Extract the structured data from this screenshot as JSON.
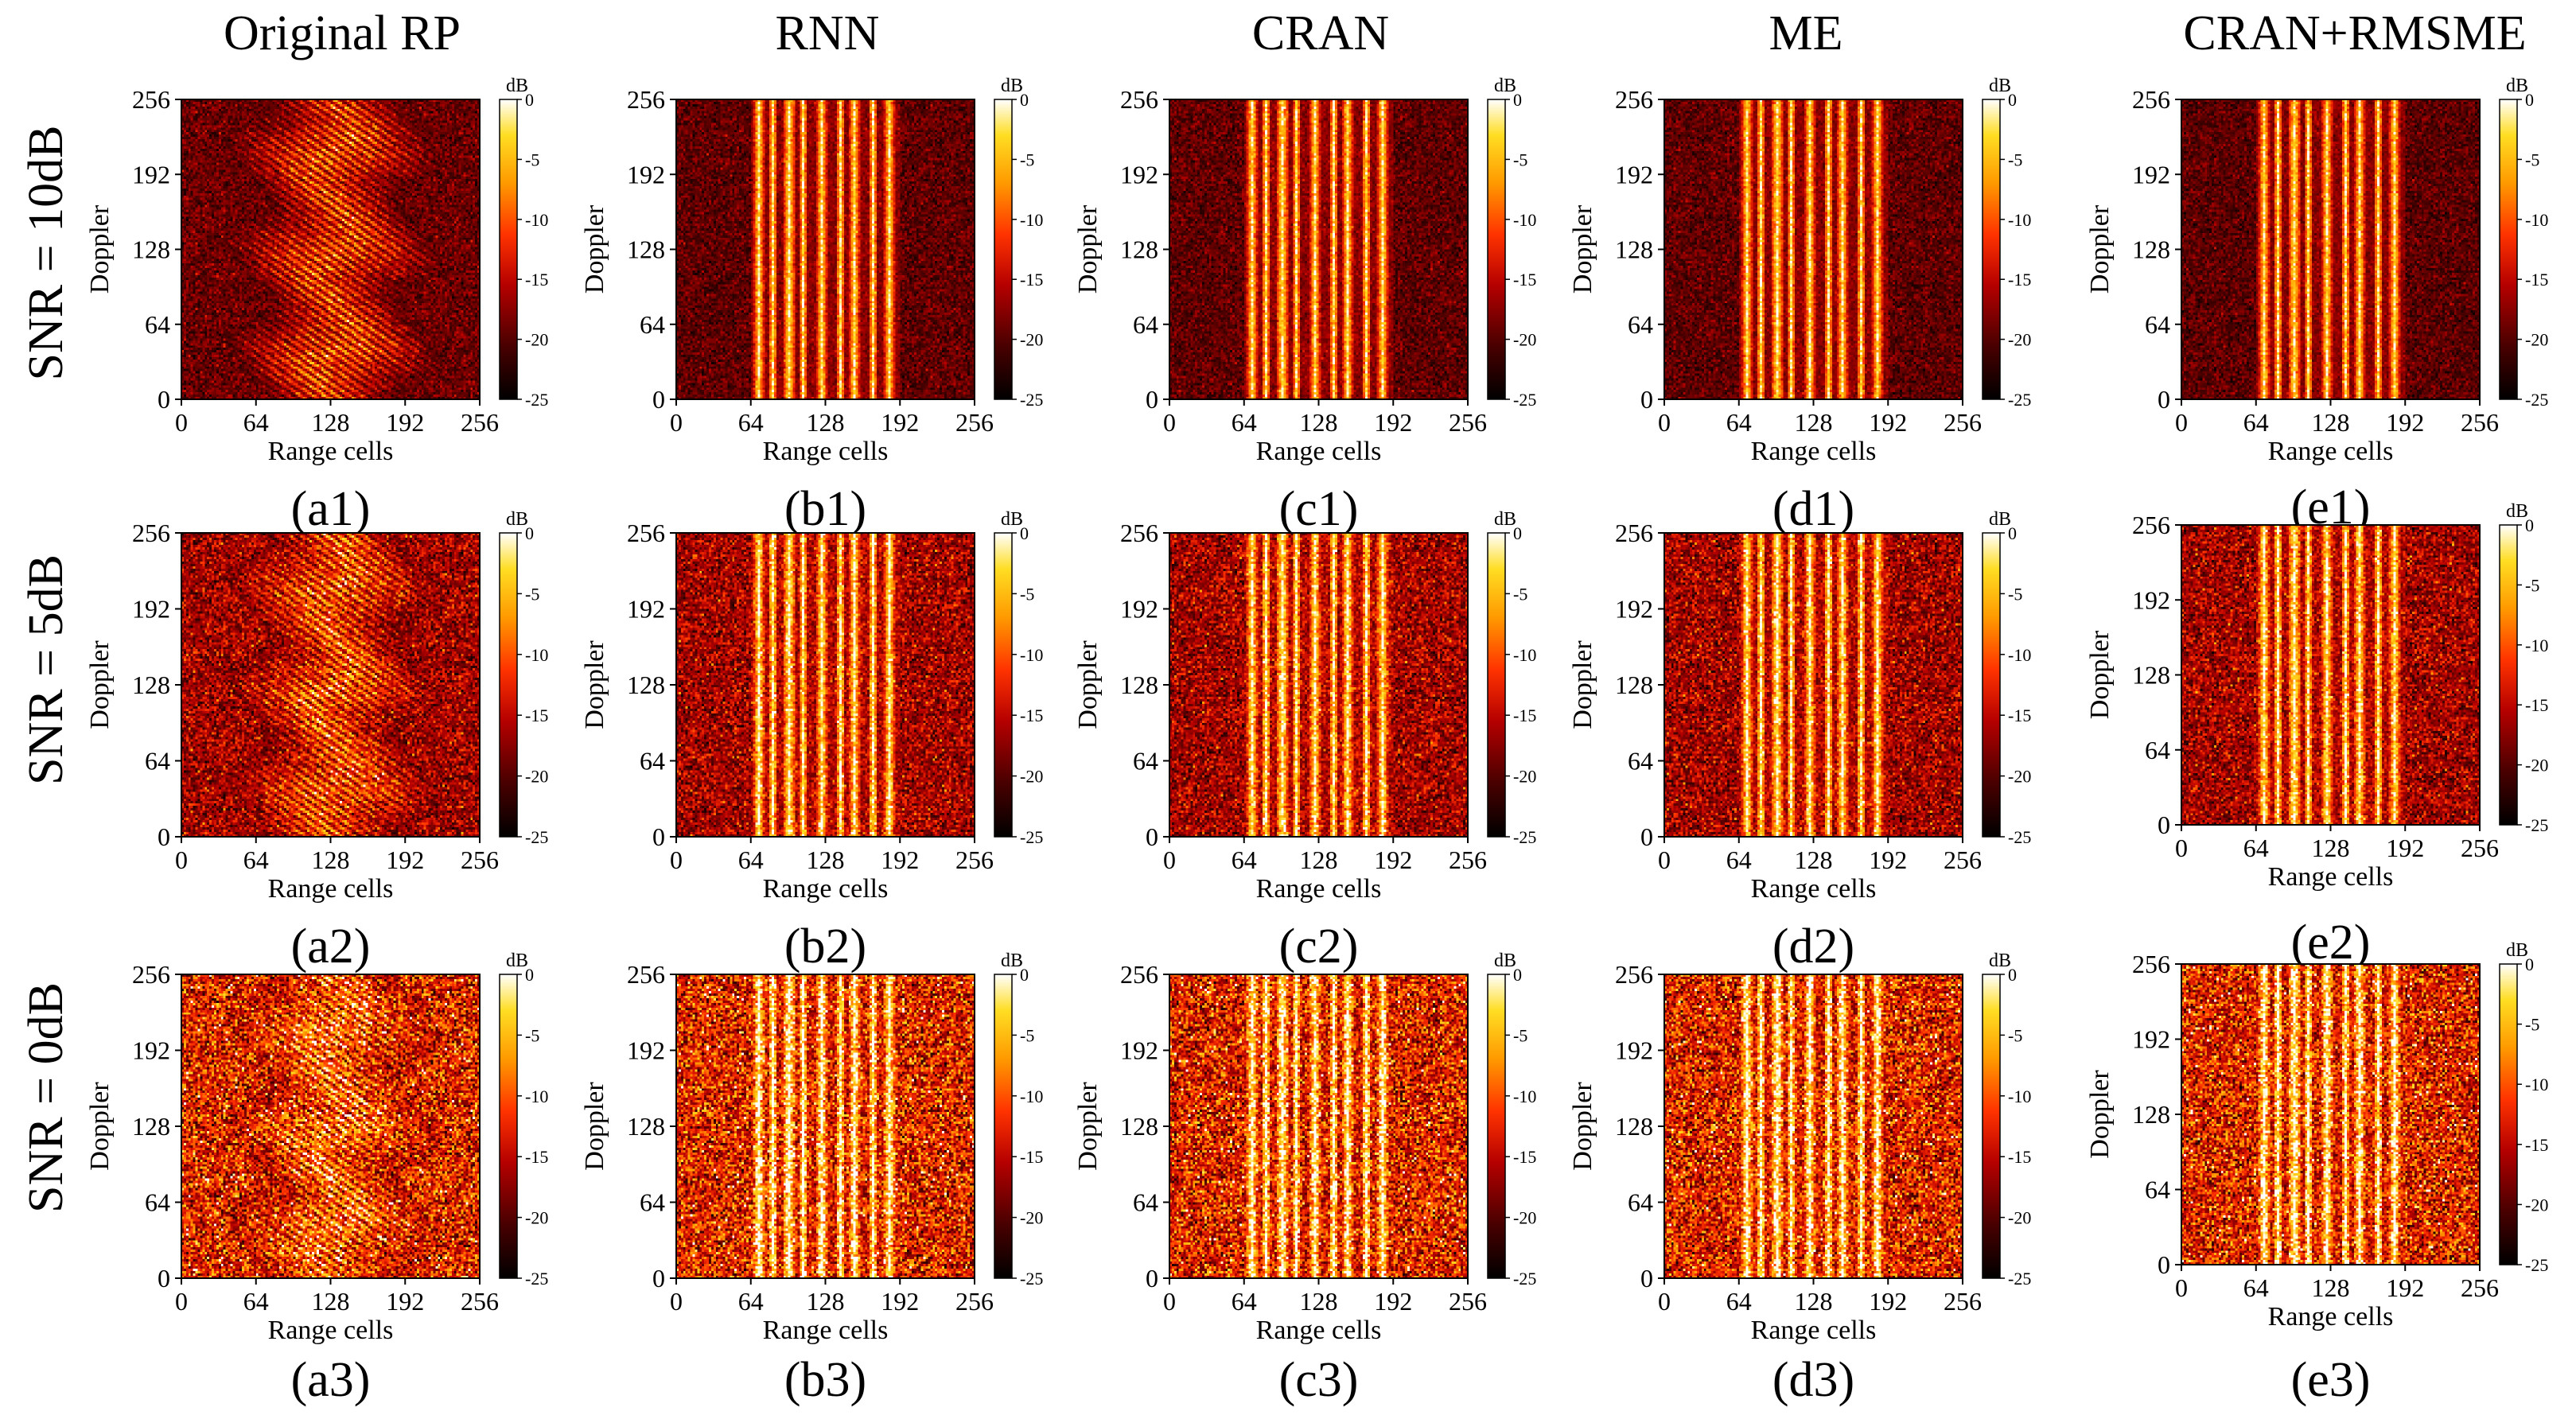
{
  "chart_data": {
    "type": "heatmap",
    "layout": "grid",
    "grid_rows": 3,
    "grid_cols": 5,
    "column_titles": [
      "Original RP",
      "RNN",
      "CRAN",
      "ME",
      "CRAN+RMSME"
    ],
    "row_labels": [
      "SNR = 10dB",
      "SNR = 5dB",
      "SNR = 0dB"
    ],
    "xlabel": "Range cells",
    "ylabel": "Doppler",
    "xticks": [
      "0",
      "64",
      "128",
      "192",
      "256"
    ],
    "yticks": [
      "0",
      "64",
      "128",
      "192",
      "256"
    ],
    "xlim": [
      0,
      256
    ],
    "ylim": [
      0,
      256
    ],
    "colorbar": {
      "label": "dB",
      "ticks": [
        "0",
        "-5",
        "-10",
        "-15",
        "-20",
        "-25"
      ],
      "range": [
        -25,
        0
      ],
      "colormap": "hot",
      "colors": [
        "#000000",
        "#4a0000",
        "#b50000",
        "#ff3300",
        "#ff9900",
        "#ffdd22",
        "#ffffff"
      ]
    },
    "panels": [
      {
        "label": "(a1)",
        "method": "Original RP",
        "snr_db": 10,
        "pattern": "spread",
        "noise_level": 0.18
      },
      {
        "label": "(b1)",
        "method": "RNN",
        "snr_db": 10,
        "pattern": "stripes",
        "noise_level": 0.15
      },
      {
        "label": "(c1)",
        "method": "CRAN",
        "snr_db": 10,
        "pattern": "stripes",
        "noise_level": 0.15
      },
      {
        "label": "(d1)",
        "method": "ME",
        "snr_db": 10,
        "pattern": "stripes",
        "noise_level": 0.15
      },
      {
        "label": "(e1)",
        "method": "CRAN+RMSME",
        "snr_db": 10,
        "pattern": "stripes",
        "noise_level": 0.14
      },
      {
        "label": "(a2)",
        "method": "Original RP",
        "snr_db": 5,
        "pattern": "spread",
        "noise_level": 0.32
      },
      {
        "label": "(b2)",
        "method": "RNN",
        "snr_db": 5,
        "pattern": "stripes",
        "noise_level": 0.32
      },
      {
        "label": "(c2)",
        "method": "CRAN",
        "snr_db": 5,
        "pattern": "stripes",
        "noise_level": 0.32
      },
      {
        "label": "(d2)",
        "method": "ME",
        "snr_db": 5,
        "pattern": "stripes",
        "noise_level": 0.32
      },
      {
        "label": "(e2)",
        "method": "CRAN+RMSME",
        "snr_db": 5,
        "pattern": "stripes",
        "noise_level": 0.32
      },
      {
        "label": "(a3)",
        "method": "Original RP",
        "snr_db": 0,
        "pattern": "spread",
        "noise_level": 0.5
      },
      {
        "label": "(b3)",
        "method": "RNN",
        "snr_db": 0,
        "pattern": "stripes",
        "noise_level": 0.5
      },
      {
        "label": "(c3)",
        "method": "CRAN",
        "snr_db": 0,
        "pattern": "stripes",
        "noise_level": 0.5
      },
      {
        "label": "(d3)",
        "method": "ME",
        "snr_db": 0,
        "pattern": "stripes",
        "noise_level": 0.5
      },
      {
        "label": "(e3)",
        "method": "CRAN+RMSME",
        "snr_db": 0,
        "pattern": "stripes",
        "noise_level": 0.5
      }
    ],
    "stripe_centers_range_cells": [
      {
        "center": 70,
        "width": 5
      },
      {
        "center": 82,
        "width": 4
      },
      {
        "center": 96,
        "width": 6
      },
      {
        "center": 108,
        "width": 4
      },
      {
        "center": 124,
        "width": 5
      },
      {
        "center": 140,
        "width": 4
      },
      {
        "center": 152,
        "width": 5
      },
      {
        "center": 168,
        "width": 4
      },
      {
        "center": 182,
        "width": 5
      }
    ]
  }
}
